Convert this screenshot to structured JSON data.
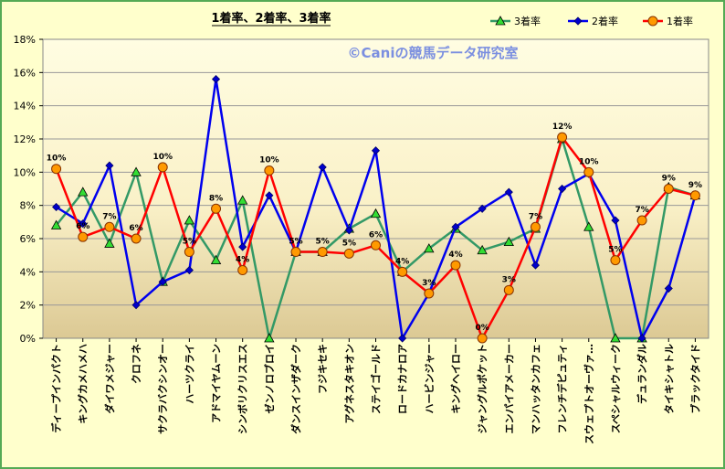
{
  "chart_data": {
    "type": "line",
    "title": "1着率、2着率、3着率",
    "watermark": "©Caniの競馬データ研究室",
    "ylim": [
      0,
      18
    ],
    "yticks": [
      "0%",
      "2%",
      "4%",
      "6%",
      "8%",
      "10%",
      "12%",
      "14%",
      "16%",
      "18%"
    ],
    "legend_position": "top-right",
    "grid": true,
    "categories": [
      "ディープインパクト",
      "キングカメハメハ",
      "ダイワメジャー",
      "クロフネ",
      "サクラバクシンオー",
      "ハーツクライ",
      "アドマイヤムーン",
      "シンボリクリスエス",
      "ゼンノロブロイ",
      "ダンスインザダーク",
      "フジキセキ",
      "アグネスタキオン",
      "ステイゴールド",
      "ロードカナロア",
      "ハービンジャー",
      "キングヘイロー",
      "ジャングルポケット",
      "エンパイアメーカー",
      "マンハッタンカフェ",
      "フレンチデピュティ",
      "スウェプトオーヴァ…",
      "スペシャルウィーク",
      "デュランダル",
      "タイキシャトル",
      "ブラックタイド"
    ],
    "series": [
      {
        "name": "3着率",
        "color": "#339966",
        "marker": "triangle",
        "marker_fill": "#33dd33",
        "values": [
          6.8,
          8.8,
          5.7,
          10.0,
          3.4,
          7.1,
          4.7,
          8.3,
          0.0,
          5.2,
          5.2,
          6.6,
          7.5,
          4.0,
          5.4,
          6.6,
          5.3,
          5.8,
          6.6,
          12.0,
          6.7,
          0.0,
          0.0,
          9.1,
          8.6
        ]
      },
      {
        "name": "2着率",
        "color": "#0000ee",
        "marker": "diamond",
        "marker_fill": "#0000cc",
        "values": [
          7.9,
          6.9,
          10.4,
          2.0,
          3.4,
          4.1,
          15.6,
          5.5,
          8.6,
          5.2,
          10.3,
          6.5,
          11.3,
          0.0,
          2.7,
          6.7,
          7.8,
          8.8,
          4.4,
          9.0,
          9.9,
          7.1,
          0.0,
          3.0,
          8.6
        ]
      },
      {
        "name": "1着率",
        "color": "#ff0000",
        "marker": "circle",
        "marker_fill": "#ff9900",
        "values": [
          10.2,
          6.1,
          6.7,
          6.0,
          10.3,
          5.2,
          7.8,
          4.1,
          10.1,
          5.2,
          5.2,
          5.1,
          5.6,
          4.0,
          2.7,
          4.4,
          0.0,
          2.9,
          6.7,
          12.1,
          10.0,
          4.7,
          7.1,
          9.0,
          8.6
        ]
      }
    ],
    "data_labels": [
      "10%",
      "6%",
      "7%",
      "6%",
      "10%",
      "5%",
      "8%",
      "4%",
      "10%",
      "5%",
      "5%",
      "5%",
      "6%",
      "4%",
      "3%",
      "4%",
      "0%",
      "3%",
      "7%",
      "12%",
      "10%",
      "5%",
      "7%",
      "9%",
      "9%"
    ]
  }
}
